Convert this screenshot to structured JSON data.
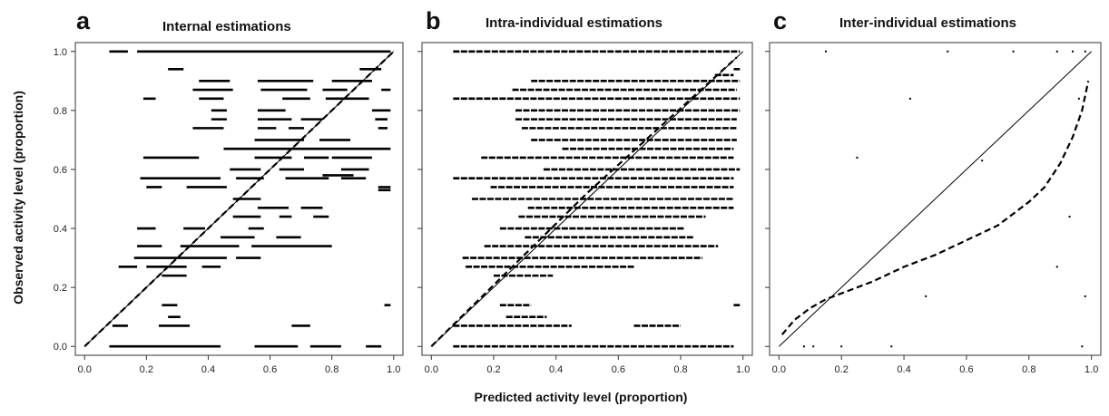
{
  "axes": {
    "xlabel": "Predicted activity level  (proportion)",
    "ylabel": "Observed activity level (proportion)"
  },
  "chart_data": [
    {
      "type": "scatter",
      "panel": "a",
      "title": "Internal estimations",
      "xlim": [
        -0.03,
        1.03
      ],
      "ylim": [
        -0.03,
        1.03
      ],
      "xticks": [
        "0.0",
        "0.2",
        "0.4",
        "0.6",
        "0.8",
        "1.0"
      ],
      "yticks": [
        "0.0",
        "0.2",
        "0.4",
        "0.6",
        "0.8",
        "1.0"
      ],
      "reference_line": {
        "style": "solid",
        "from": [
          0,
          0
        ],
        "to": [
          1,
          1
        ]
      },
      "fit_line": {
        "style": "dashed",
        "x": [
          0.0,
          0.5,
          1.0
        ],
        "y": [
          0.0,
          0.5,
          1.0
        ]
      },
      "segments": [
        {
          "y": 1.0,
          "x0": 0.08,
          "x1": 0.14
        },
        {
          "y": 1.0,
          "x0": 0.17,
          "x1": 0.99
        },
        {
          "y": 0.94,
          "x0": 0.27,
          "x1": 0.32
        },
        {
          "y": 0.94,
          "x0": 0.89,
          "x1": 0.96
        },
        {
          "y": 0.9,
          "x0": 0.37,
          "x1": 0.47
        },
        {
          "y": 0.9,
          "x0": 0.56,
          "x1": 0.74
        },
        {
          "y": 0.9,
          "x0": 0.8,
          "x1": 0.93
        },
        {
          "y": 0.87,
          "x0": 0.35,
          "x1": 0.48
        },
        {
          "y": 0.87,
          "x0": 0.57,
          "x1": 0.72
        },
        {
          "y": 0.87,
          "x0": 0.77,
          "x1": 0.85
        },
        {
          "y": 0.87,
          "x0": 0.96,
          "x1": 0.99
        },
        {
          "y": 0.84,
          "x0": 0.19,
          "x1": 0.23
        },
        {
          "y": 0.84,
          "x0": 0.37,
          "x1": 0.45
        },
        {
          "y": 0.84,
          "x0": 0.64,
          "x1": 0.73
        },
        {
          "y": 0.84,
          "x0": 0.78,
          "x1": 0.92
        },
        {
          "y": 0.8,
          "x0": 0.41,
          "x1": 0.46
        },
        {
          "y": 0.8,
          "x0": 0.56,
          "x1": 0.65
        },
        {
          "y": 0.8,
          "x0": 0.93,
          "x1": 0.99
        },
        {
          "y": 0.77,
          "x0": 0.41,
          "x1": 0.46
        },
        {
          "y": 0.77,
          "x0": 0.56,
          "x1": 0.67
        },
        {
          "y": 0.77,
          "x0": 0.7,
          "x1": 0.77
        },
        {
          "y": 0.77,
          "x0": 0.94,
          "x1": 0.98
        },
        {
          "y": 0.74,
          "x0": 0.35,
          "x1": 0.45
        },
        {
          "y": 0.74,
          "x0": 0.56,
          "x1": 0.62
        },
        {
          "y": 0.74,
          "x0": 0.66,
          "x1": 0.71
        },
        {
          "y": 0.74,
          "x0": 0.95,
          "x1": 0.98
        },
        {
          "y": 0.7,
          "x0": 0.55,
          "x1": 0.71
        },
        {
          "y": 0.7,
          "x0": 0.76,
          "x1": 0.86
        },
        {
          "y": 0.67,
          "x0": 0.45,
          "x1": 0.99
        },
        {
          "y": 0.64,
          "x0": 0.19,
          "x1": 0.37
        },
        {
          "y": 0.64,
          "x0": 0.55,
          "x1": 0.67
        },
        {
          "y": 0.64,
          "x0": 0.71,
          "x1": 0.79
        },
        {
          "y": 0.64,
          "x0": 0.8,
          "x1": 0.93
        },
        {
          "y": 0.6,
          "x0": 0.47,
          "x1": 0.57
        },
        {
          "y": 0.6,
          "x0": 0.63,
          "x1": 0.71
        },
        {
          "y": 0.6,
          "x0": 0.83,
          "x1": 0.92
        },
        {
          "y": 0.58,
          "x0": 0.77,
          "x1": 0.87
        },
        {
          "y": 0.57,
          "x0": 0.18,
          "x1": 0.44
        },
        {
          "y": 0.57,
          "x0": 0.49,
          "x1": 0.58
        },
        {
          "y": 0.57,
          "x0": 0.65,
          "x1": 0.79
        },
        {
          "y": 0.57,
          "x0": 0.83,
          "x1": 0.91
        },
        {
          "y": 0.54,
          "x0": 0.2,
          "x1": 0.25
        },
        {
          "y": 0.54,
          "x0": 0.33,
          "x1": 0.46
        },
        {
          "y": 0.54,
          "x0": 0.95,
          "x1": 0.99
        },
        {
          "y": 0.53,
          "x0": 0.95,
          "x1": 0.99
        },
        {
          "y": 0.5,
          "x0": 0.48,
          "x1": 0.57
        },
        {
          "y": 0.47,
          "x0": 0.56,
          "x1": 0.66
        },
        {
          "y": 0.47,
          "x0": 0.7,
          "x1": 0.77
        },
        {
          "y": 0.44,
          "x0": 0.48,
          "x1": 0.57
        },
        {
          "y": 0.44,
          "x0": 0.63,
          "x1": 0.67
        },
        {
          "y": 0.44,
          "x0": 0.74,
          "x1": 0.79
        },
        {
          "y": 0.4,
          "x0": 0.17,
          "x1": 0.23
        },
        {
          "y": 0.4,
          "x0": 0.32,
          "x1": 0.39
        },
        {
          "y": 0.4,
          "x0": 0.53,
          "x1": 0.58
        },
        {
          "y": 0.37,
          "x0": 0.44,
          "x1": 0.55
        },
        {
          "y": 0.37,
          "x0": 0.62,
          "x1": 0.7
        },
        {
          "y": 0.34,
          "x0": 0.17,
          "x1": 0.25
        },
        {
          "y": 0.34,
          "x0": 0.31,
          "x1": 0.5
        },
        {
          "y": 0.34,
          "x0": 0.54,
          "x1": 0.8
        },
        {
          "y": 0.3,
          "x0": 0.16,
          "x1": 0.46
        },
        {
          "y": 0.3,
          "x0": 0.49,
          "x1": 0.57
        },
        {
          "y": 0.27,
          "x0": 0.11,
          "x1": 0.17
        },
        {
          "y": 0.27,
          "x0": 0.2,
          "x1": 0.33
        },
        {
          "y": 0.27,
          "x0": 0.38,
          "x1": 0.44
        },
        {
          "y": 0.24,
          "x0": 0.25,
          "x1": 0.33
        },
        {
          "y": 0.14,
          "x0": 0.25,
          "x1": 0.3
        },
        {
          "y": 0.14,
          "x0": 0.97,
          "x1": 0.99
        },
        {
          "y": 0.1,
          "x0": 0.27,
          "x1": 0.31
        },
        {
          "y": 0.07,
          "x0": 0.09,
          "x1": 0.14
        },
        {
          "y": 0.07,
          "x0": 0.24,
          "x1": 0.34
        },
        {
          "y": 0.07,
          "x0": 0.67,
          "x1": 0.73
        },
        {
          "y": 0.0,
          "x0": 0.08,
          "x1": 0.44
        },
        {
          "y": 0.0,
          "x0": 0.55,
          "x1": 0.69
        },
        {
          "y": 0.0,
          "x0": 0.73,
          "x1": 0.83
        },
        {
          "y": 0.0,
          "x0": 0.91,
          "x1": 0.96
        }
      ]
    },
    {
      "type": "scatter",
      "panel": "b",
      "title": "Intra-individual estimations",
      "xlim": [
        -0.03,
        1.03
      ],
      "ylim": [
        -0.03,
        1.03
      ],
      "xticks": [
        "0.0",
        "0.2",
        "0.4",
        "0.6",
        "0.8",
        "1.0"
      ],
      "yticks": [],
      "reference_line": {
        "style": "solid",
        "from": [
          0,
          0
        ],
        "to": [
          1,
          1
        ]
      },
      "fit_line": {
        "style": "dashed",
        "x": [
          0.0,
          0.5,
          0.98
        ],
        "y": [
          0.0,
          0.52,
          0.98
        ]
      },
      "segments": [
        {
          "y": 1.0,
          "x0": 0.07,
          "x1": 0.99
        },
        {
          "y": 0.94,
          "x0": 0.97,
          "x1": 0.99
        },
        {
          "y": 0.92,
          "x0": 0.91,
          "x1": 0.97
        },
        {
          "y": 0.9,
          "x0": 0.32,
          "x1": 0.99
        },
        {
          "y": 0.87,
          "x0": 0.26,
          "x1": 0.98
        },
        {
          "y": 0.84,
          "x0": 0.07,
          "x1": 0.99
        },
        {
          "y": 0.8,
          "x0": 0.27,
          "x1": 0.99
        },
        {
          "y": 0.77,
          "x0": 0.27,
          "x1": 0.98
        },
        {
          "y": 0.74,
          "x0": 0.29,
          "x1": 0.98
        },
        {
          "y": 0.7,
          "x0": 0.32,
          "x1": 0.98
        },
        {
          "y": 0.67,
          "x0": 0.42,
          "x1": 0.97
        },
        {
          "y": 0.64,
          "x0": 0.16,
          "x1": 0.97
        },
        {
          "y": 0.6,
          "x0": 0.36,
          "x1": 0.99
        },
        {
          "y": 0.57,
          "x0": 0.07,
          "x1": 0.97
        },
        {
          "y": 0.54,
          "x0": 0.19,
          "x1": 0.97
        },
        {
          "y": 0.5,
          "x0": 0.13,
          "x1": 0.97
        },
        {
          "y": 0.47,
          "x0": 0.31,
          "x1": 0.97
        },
        {
          "y": 0.44,
          "x0": 0.28,
          "x1": 0.88
        },
        {
          "y": 0.4,
          "x0": 0.22,
          "x1": 0.81
        },
        {
          "y": 0.37,
          "x0": 0.3,
          "x1": 0.84
        },
        {
          "y": 0.34,
          "x0": 0.17,
          "x1": 0.92
        },
        {
          "y": 0.3,
          "x0": 0.1,
          "x1": 0.87
        },
        {
          "y": 0.27,
          "x0": 0.11,
          "x1": 0.65
        },
        {
          "y": 0.24,
          "x0": 0.2,
          "x1": 0.39
        },
        {
          "y": 0.14,
          "x0": 0.22,
          "x1": 0.32
        },
        {
          "y": 0.14,
          "x0": 0.97,
          "x1": 0.99
        },
        {
          "y": 0.1,
          "x0": 0.24,
          "x1": 0.37
        },
        {
          "y": 0.07,
          "x0": 0.07,
          "x1": 0.45
        },
        {
          "y": 0.07,
          "x0": 0.65,
          "x1": 0.8
        },
        {
          "y": 0.0,
          "x0": 0.07,
          "x1": 0.97
        }
      ]
    },
    {
      "type": "scatter",
      "panel": "c",
      "title": "Inter-individual estimations",
      "xlim": [
        -0.03,
        1.03
      ],
      "ylim": [
        -0.03,
        1.03
      ],
      "xticks": [
        "0.0",
        "0.2",
        "0.4",
        "0.6",
        "0.8",
        "1.0"
      ],
      "yticks": [],
      "reference_line": {
        "style": "solid",
        "from": [
          0,
          0
        ],
        "to": [
          1,
          1
        ]
      },
      "fit_line": {
        "style": "dashed",
        "x": [
          0.01,
          0.05,
          0.1,
          0.15,
          0.2,
          0.3,
          0.4,
          0.5,
          0.6,
          0.7,
          0.8,
          0.85,
          0.9,
          0.94,
          0.97,
          0.99
        ],
        "y": [
          0.04,
          0.09,
          0.13,
          0.16,
          0.18,
          0.22,
          0.27,
          0.31,
          0.36,
          0.41,
          0.49,
          0.54,
          0.62,
          0.71,
          0.8,
          0.9
        ]
      },
      "points": [
        {
          "x": 0.15,
          "y": 1.0
        },
        {
          "x": 0.54,
          "y": 1.0
        },
        {
          "x": 0.75,
          "y": 1.0
        },
        {
          "x": 0.89,
          "y": 1.0
        },
        {
          "x": 0.94,
          "y": 1.0
        },
        {
          "x": 0.98,
          "y": 1.0
        },
        {
          "x": 0.42,
          "y": 0.84
        },
        {
          "x": 0.96,
          "y": 0.84
        },
        {
          "x": 0.25,
          "y": 0.64
        },
        {
          "x": 0.65,
          "y": 0.63
        },
        {
          "x": 0.93,
          "y": 0.44
        },
        {
          "x": 0.89,
          "y": 0.27
        },
        {
          "x": 0.47,
          "y": 0.17
        },
        {
          "x": 0.98,
          "y": 0.17
        },
        {
          "x": 0.08,
          "y": 0.0
        },
        {
          "x": 0.11,
          "y": 0.0
        },
        {
          "x": 0.2,
          "y": 0.0
        },
        {
          "x": 0.36,
          "y": 0.0
        },
        {
          "x": 0.97,
          "y": 0.0
        }
      ]
    }
  ]
}
